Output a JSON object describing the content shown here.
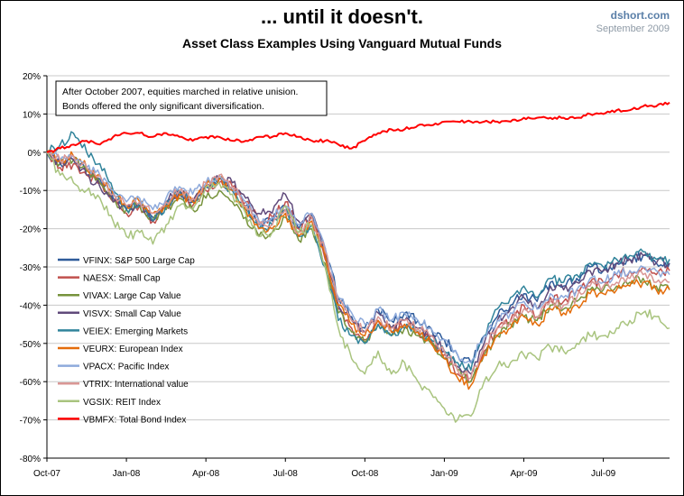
{
  "header": {
    "title": "... until it doesn't.",
    "subtitle": "Asset Class Examples Using Vanguard  Mutual Funds",
    "brand": "dshort.com",
    "date": "September 2009"
  },
  "annotation": {
    "line1": "After October 2007, equities marched in relative unision.",
    "line2": "Bonds offered the only significant diversification."
  },
  "chart_data": {
    "type": "line",
    "title": "... until it doesn't.",
    "subtitle": "Asset Class Examples Using Vanguard  Mutual Funds",
    "xlabel": "",
    "ylabel": "",
    "ylim": [
      -80,
      20
    ],
    "y_ticks": [
      20,
      10,
      0,
      -10,
      -20,
      -30,
      -40,
      -50,
      -60,
      -70,
      -80
    ],
    "y_tick_labels": [
      "20%",
      "10%",
      "0%",
      "-10%",
      "-20%",
      "-30%",
      "-40%",
      "-50%",
      "-60%",
      "-70%",
      "-80%"
    ],
    "x_tick_labels": [
      "Oct-07",
      "Jan-08",
      "Apr-08",
      "Jul-08",
      "Oct-08",
      "Jan-09",
      "Apr-09",
      "Jul-09"
    ],
    "grid": "horizontal",
    "legend_position": "left-bottom",
    "x_months": [
      0,
      0.5,
      1,
      1.5,
      2,
      2.5,
      3,
      3.5,
      4,
      4.5,
      5,
      5.5,
      6,
      6.5,
      7,
      7.5,
      8,
      8.5,
      9,
      9.5,
      10,
      10.5,
      11,
      11.5,
      12,
      12.5,
      13,
      13.5,
      14,
      14.5,
      15,
      15.5,
      16,
      16.5,
      17,
      17.5,
      18,
      18.5,
      19,
      19.5,
      20,
      20.5,
      21,
      21.5,
      22,
      22.5,
      23,
      23.5
    ],
    "series": [
      {
        "name": "VFINX: S&P 500 Large Cap",
        "color": "#2e5b9a",
        "values": [
          0,
          -3,
          -2,
          -5,
          -7,
          -12,
          -15,
          -13,
          -17,
          -14,
          -10,
          -13,
          -9,
          -7,
          -10,
          -14,
          -19,
          -18,
          -14,
          -20,
          -16,
          -25,
          -38,
          -43,
          -46,
          -41,
          -44,
          -42,
          -44,
          -46,
          -49,
          -53,
          -55,
          -48,
          -43,
          -40,
          -37,
          -39,
          -34,
          -35,
          -33,
          -30,
          -31,
          -29,
          -28,
          -27,
          -29,
          -29
        ]
      },
      {
        "name": "NAESX: Small Cap",
        "color": "#c0504d",
        "values": [
          0,
          -4,
          -3,
          -6,
          -8,
          -13,
          -16,
          -14,
          -18,
          -14,
          -11,
          -14,
          -10,
          -8,
          -9,
          -13,
          -18,
          -17,
          -13,
          -20,
          -17,
          -28,
          -41,
          -46,
          -49,
          -44,
          -47,
          -45,
          -47,
          -49,
          -53,
          -58,
          -60,
          -52,
          -46,
          -44,
          -40,
          -43,
          -38,
          -39,
          -36,
          -34,
          -34,
          -32,
          -31,
          -30,
          -32,
          -31
        ]
      },
      {
        "name": "VIVAX: Large Cap Value",
        "color": "#77933c",
        "values": [
          0,
          -3,
          -2,
          -5,
          -8,
          -13,
          -15,
          -14,
          -18,
          -15,
          -12,
          -15,
          -12,
          -10,
          -13,
          -17,
          -22,
          -21,
          -17,
          -23,
          -20,
          -29,
          -42,
          -47,
          -50,
          -45,
          -48,
          -46,
          -48,
          -50,
          -54,
          -57,
          -60,
          -53,
          -48,
          -45,
          -43,
          -44,
          -40,
          -41,
          -39,
          -36,
          -36,
          -35,
          -34,
          -33,
          -35,
          -36
        ]
      },
      {
        "name": "VISVX: Small Cap Value",
        "color": "#604a7b",
        "values": [
          0,
          -3,
          -2,
          -6,
          -9,
          -13,
          -15,
          -14,
          -18,
          -13,
          -10,
          -13,
          -9,
          -7,
          -8,
          -12,
          -16,
          -16,
          -11,
          -18,
          -16,
          -26,
          -40,
          -44,
          -47,
          -42,
          -46,
          -44,
          -46,
          -48,
          -52,
          -56,
          -58,
          -50,
          -44,
          -41,
          -38,
          -41,
          -35,
          -36,
          -34,
          -31,
          -31,
          -29,
          -28,
          -27,
          -29,
          -29
        ]
      },
      {
        "name": "VEIEX: Emerging Markets",
        "color": "#31849b",
        "values": [
          0,
          2,
          5,
          0,
          -3,
          -10,
          -15,
          -13,
          -18,
          -14,
          -10,
          -13,
          -9,
          -7,
          -10,
          -15,
          -20,
          -19,
          -15,
          -22,
          -19,
          -30,
          -44,
          -48,
          -50,
          -45,
          -48,
          -46,
          -47,
          -49,
          -52,
          -55,
          -57,
          -48,
          -41,
          -38,
          -35,
          -38,
          -33,
          -34,
          -32,
          -29,
          -30,
          -28,
          -27,
          -26,
          -28,
          -28
        ]
      },
      {
        "name": "VEURX: European Index",
        "color": "#e46c0a",
        "values": [
          0,
          -2,
          -1,
          -4,
          -6,
          -11,
          -14,
          -13,
          -16,
          -14,
          -11,
          -13,
          -9,
          -7,
          -10,
          -15,
          -20,
          -20,
          -16,
          -22,
          -18,
          -27,
          -40,
          -45,
          -48,
          -44,
          -47,
          -45,
          -47,
          -50,
          -54,
          -59,
          -61,
          -53,
          -48,
          -46,
          -43,
          -45,
          -41,
          -42,
          -40,
          -37,
          -37,
          -36,
          -35,
          -34,
          -36,
          -36
        ]
      },
      {
        "name": "VPACX: Pacific Index",
        "color": "#8eaadb",
        "values": [
          0,
          -2,
          -1,
          -4,
          -6,
          -10,
          -13,
          -12,
          -15,
          -12,
          -9,
          -11,
          -8,
          -6,
          -9,
          -13,
          -18,
          -17,
          -14,
          -19,
          -16,
          -25,
          -38,
          -42,
          -45,
          -41,
          -44,
          -42,
          -44,
          -46,
          -49,
          -53,
          -55,
          -48,
          -44,
          -42,
          -39,
          -41,
          -37,
          -38,
          -36,
          -33,
          -34,
          -32,
          -31,
          -30,
          -31,
          -32
        ]
      },
      {
        "name": "VTRIX: International value",
        "color": "#d99694",
        "values": [
          0,
          -2,
          -1,
          -4,
          -6,
          -11,
          -14,
          -13,
          -16,
          -13,
          -10,
          -12,
          -8,
          -6,
          -9,
          -14,
          -19,
          -19,
          -15,
          -21,
          -17,
          -26,
          -39,
          -44,
          -47,
          -43,
          -46,
          -44,
          -46,
          -48,
          -52,
          -57,
          -59,
          -51,
          -46,
          -44,
          -41,
          -43,
          -39,
          -40,
          -38,
          -35,
          -35,
          -34,
          -33,
          -32,
          -34,
          -34
        ]
      },
      {
        "name": "VGSIX: REIT Index",
        "color": "#a9c47f",
        "values": [
          0,
          -6,
          -8,
          -10,
          -12,
          -18,
          -22,
          -21,
          -24,
          -19,
          -14,
          -15,
          -9,
          -8,
          -11,
          -16,
          -22,
          -21,
          -14,
          -21,
          -19,
          -30,
          -46,
          -54,
          -58,
          -52,
          -58,
          -55,
          -60,
          -63,
          -67,
          -70,
          -69,
          -60,
          -56,
          -55,
          -53,
          -54,
          -51,
          -52,
          -50,
          -48,
          -48,
          -46,
          -44,
          -42,
          -43,
          -46
        ]
      },
      {
        "name": "VBMFX: Total Bond Index",
        "color": "#ff0000",
        "values": [
          0,
          1,
          2,
          3,
          2,
          4,
          5,
          5,
          4,
          5,
          4,
          3,
          4,
          4,
          3,
          3,
          4,
          4,
          5,
          4,
          3,
          3,
          2,
          1,
          3,
          5,
          6,
          6,
          7,
          7,
          8,
          8,
          8,
          8,
          8,
          8,
          9,
          9,
          9,
          9,
          9,
          10,
          10,
          11,
          11,
          12,
          12,
          13
        ]
      }
    ]
  }
}
